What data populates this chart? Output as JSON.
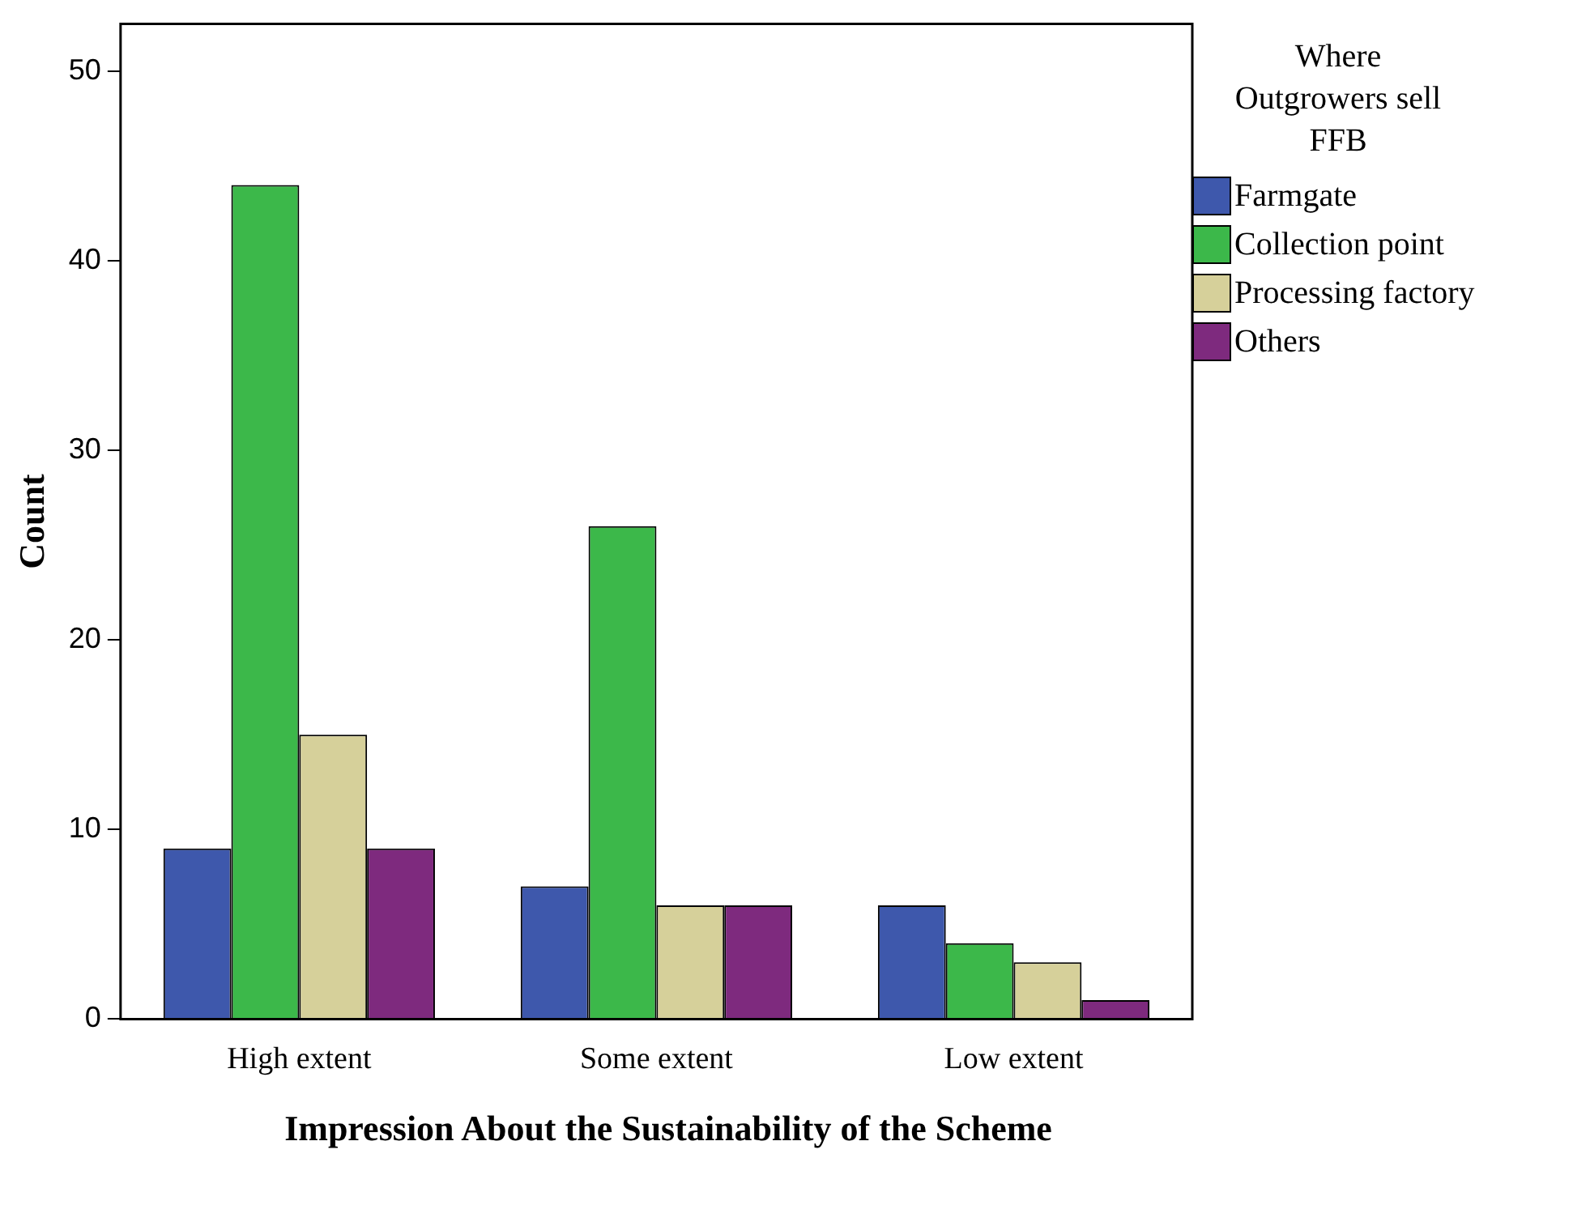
{
  "chart_data": {
    "type": "bar",
    "xlabel": "Impression About the Sustainability of the Scheme",
    "ylabel": "Count",
    "legend_title": "Where Outgrowers  sell FFB",
    "categories": [
      "High extent",
      "Some extent",
      "Low extent"
    ],
    "series": [
      {
        "name": "Farmgate",
        "color": "#3e58ac",
        "values": [
          9,
          7,
          6
        ]
      },
      {
        "name": "Collection point",
        "color": "#3cb84a",
        "values": [
          44,
          26,
          4
        ]
      },
      {
        "name": "Processing factory",
        "color": "#d6d09a",
        "values": [
          15,
          6,
          3
        ]
      },
      {
        "name": "Others",
        "color": "#7e2a7e",
        "values": [
          9,
          6,
          1
        ]
      }
    ],
    "ylim": [
      0,
      52.5
    ],
    "yticks": [
      0,
      10,
      20,
      30,
      40,
      50
    ],
    "grid": false,
    "legend": "right"
  }
}
